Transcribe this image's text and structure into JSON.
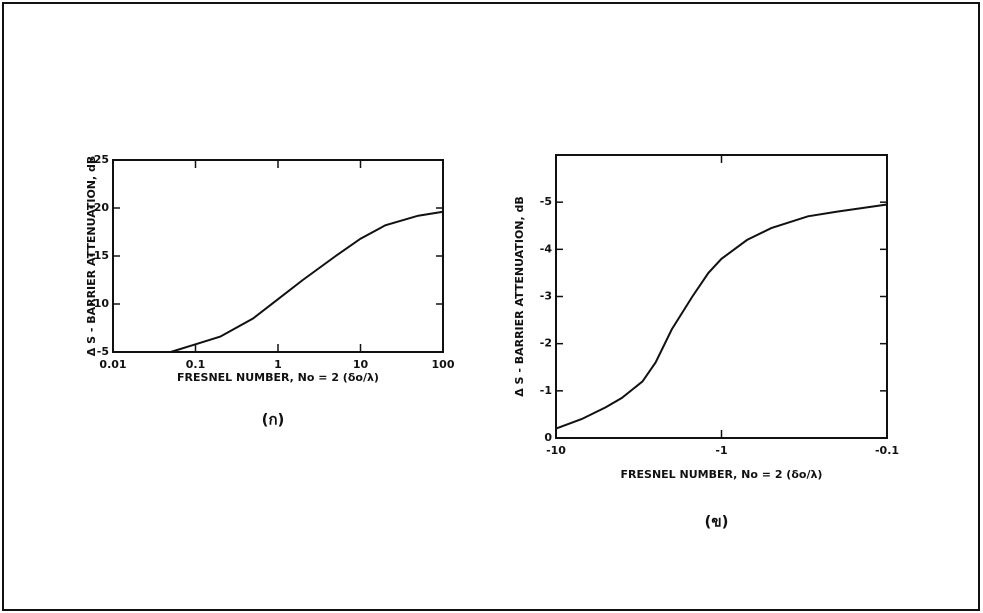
{
  "chart_data": [
    {
      "type": "line",
      "caption": "(ก)",
      "x_label": "FRESNEL NUMBER, No = 2 (δo/λ)",
      "y_label": "Δ S - BARRIER ATTENUATION, dB",
      "x_log": true,
      "grid": false,
      "color": "#111111",
      "xlim": [
        0.01,
        100
      ],
      "xticks": [
        0.01,
        0.1,
        1,
        10,
        100
      ],
      "ylim": [
        -5,
        -25
      ],
      "yticks": [
        -5,
        -10,
        -15,
        -20,
        -25
      ],
      "x": [
        0.05,
        0.1,
        0.2,
        0.5,
        1,
        2,
        5,
        10,
        20,
        50,
        100
      ],
      "values": [
        -5,
        -5.8,
        -6.6,
        -8.5,
        -10.5,
        -12.5,
        -15,
        -16.8,
        -18.2,
        -19.2,
        -19.6
      ]
    },
    {
      "type": "line",
      "caption": "(ข)",
      "x_label": "FRESNEL NUMBER, No = 2 (δo/λ)",
      "y_label": "Δ S - BARRIER ATTENUATION, dB",
      "x_log": true,
      "grid": false,
      "color": "#111111",
      "xlim": [
        -10,
        -0.1
      ],
      "xticks": [
        -10,
        -1,
        -0.1
      ],
      "ylim": [
        0,
        -6
      ],
      "yticks": [
        0,
        -1,
        -2,
        -3,
        -4,
        -5
      ],
      "x": [
        -10,
        -7,
        -5,
        -4,
        -3,
        -2.5,
        -2,
        -1.5,
        -1.2,
        -1,
        -0.7,
        -0.5,
        -0.3,
        -0.2,
        -0.1
      ],
      "values": [
        -0.2,
        -0.4,
        -0.65,
        -0.85,
        -1.2,
        -1.6,
        -2.3,
        -3.0,
        -3.5,
        -3.8,
        -4.2,
        -4.45,
        -4.7,
        -4.8,
        -4.95
      ]
    }
  ]
}
